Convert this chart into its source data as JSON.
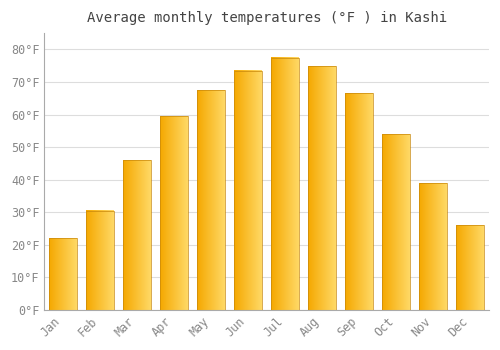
{
  "title": "Average monthly temperatures (°F ) in Kashi",
  "months": [
    "Jan",
    "Feb",
    "Mar",
    "Apr",
    "May",
    "Jun",
    "Jul",
    "Aug",
    "Sep",
    "Oct",
    "Nov",
    "Dec"
  ],
  "values": [
    22,
    30.5,
    46,
    59.5,
    67.5,
    73.5,
    77.5,
    75,
    66.5,
    54,
    39,
    26
  ],
  "bar_color_left": "#F5A800",
  "bar_color_right": "#FFD966",
  "bar_edge_color": "#C8870A",
  "ylim": [
    0,
    85
  ],
  "yticks": [
    0,
    10,
    20,
    30,
    40,
    50,
    60,
    70,
    80
  ],
  "ytick_labels": [
    "0°F",
    "10°F",
    "20°F",
    "30°F",
    "40°F",
    "50°F",
    "60°F",
    "70°F",
    "80°F"
  ],
  "background_color": "#FFFFFF",
  "grid_color": "#DDDDDD",
  "title_fontsize": 10,
  "tick_fontsize": 8.5
}
